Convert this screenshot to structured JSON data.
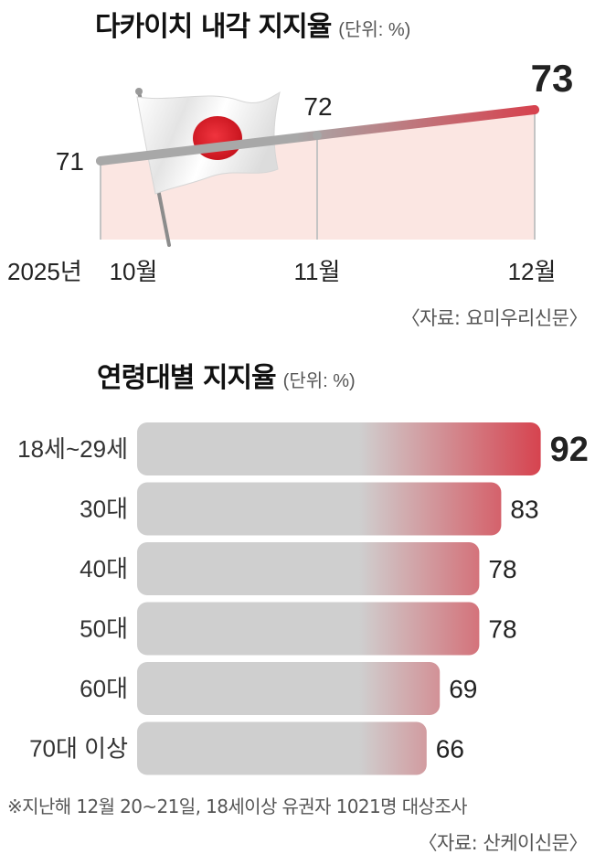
{
  "line_title": "다카이치 내각 지지율",
  "line_unit": "(단위: %)",
  "line_source": "〈자료: 요미우리신문〉",
  "bar_title": "연령대별 지지율",
  "bar_unit": "(단위: %)",
  "footnote": "※지난해 12월 20~21일, 18세이상 유권자 1021명 대상조사",
  "bar_source": "〈자료: 산케이신문〉",
  "colors": {
    "accent_red": "#d6434f",
    "line_gray": "#a8a8a8",
    "bar_gray": "#cfcfcf",
    "area_fill": "#fbe6e2",
    "flag_red": "#e0202c"
  },
  "decor_icon": "japan-flag-icon",
  "chart_data": [
    {
      "type": "line",
      "title": "다카이치 내각 지지율",
      "year_label": "2025년",
      "categories": [
        "10월",
        "11월",
        "12월"
      ],
      "values": [
        71,
        72,
        73
      ],
      "unit": "%",
      "highlight_last": true
    },
    {
      "type": "bar",
      "orientation": "horizontal",
      "title": "연령대별 지지율",
      "categories": [
        "18세~29세",
        "30대",
        "40대",
        "50대",
        "60대",
        "70대 이상"
      ],
      "values": [
        92,
        83,
        78,
        78,
        69,
        66
      ],
      "unit": "%",
      "highlight_first": true
    }
  ]
}
